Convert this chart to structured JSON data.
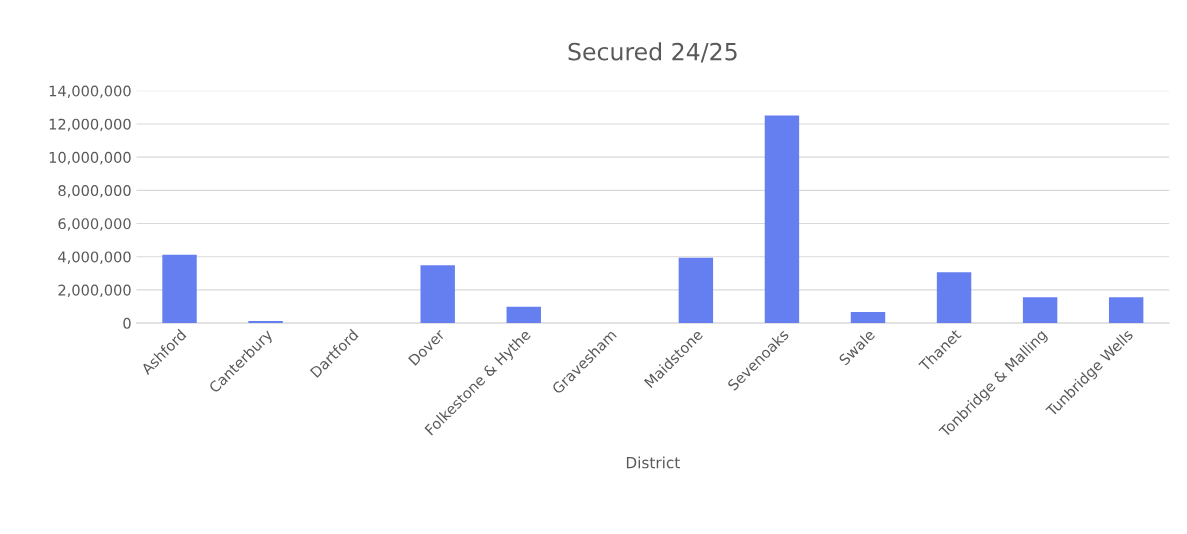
{
  "chart_data": {
    "type": "bar",
    "title": "Secured 24/25",
    "xlabel": "District",
    "categories": [
      "Ashford",
      "Canterbury",
      "Dartford",
      "Dover",
      "Folkestone & Hythe",
      "Gravesham",
      "Maidstone",
      "Sevenoaks",
      "Swale",
      "Thanet",
      "Tonbridge & Malling",
      "Tunbridge Wells"
    ],
    "values": [
      4120000,
      120000,
      0,
      3480000,
      980000,
      0,
      3930000,
      12510000,
      670000,
      3070000,
      1560000,
      1560000
    ],
    "color": "#657ff0",
    "ylim": [
      0,
      14000000
    ],
    "yticks": [
      {
        "value": 0,
        "label": "0"
      },
      {
        "value": 2000000,
        "label": "2,000,000"
      },
      {
        "value": 4000000,
        "label": "4,000,000"
      },
      {
        "value": 6000000,
        "label": "6,000,000"
      },
      {
        "value": 8000000,
        "label": "8,000,000"
      },
      {
        "value": 10000000,
        "label": "10,000,000"
      },
      {
        "value": 12000000,
        "label": "12,000,000"
      },
      {
        "value": 14000000,
        "label": "14,000,000"
      }
    ],
    "grid": "y"
  }
}
